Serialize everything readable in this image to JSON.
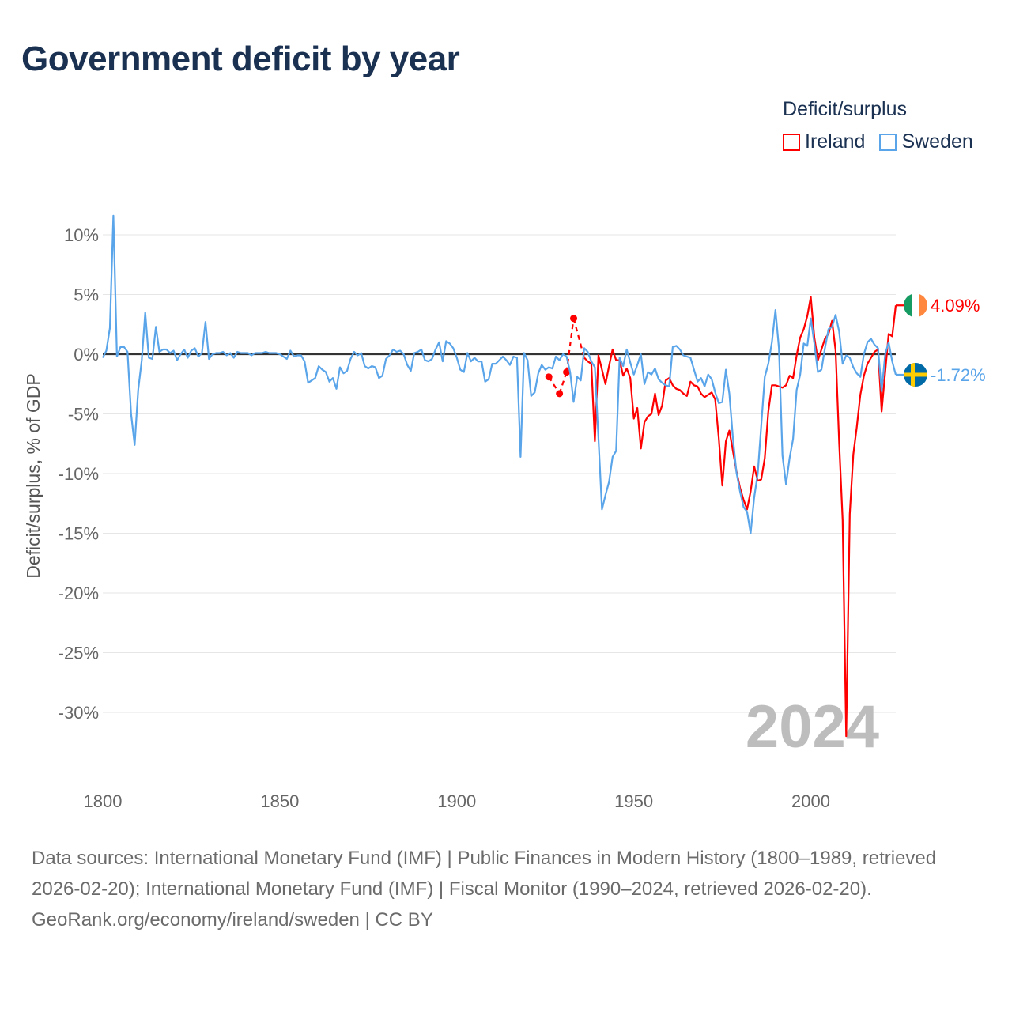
{
  "title": "Government deficit by year",
  "legend": {
    "title": "Deficit/surplus",
    "items": [
      {
        "label": "Ireland",
        "color": "#ff0000"
      },
      {
        "label": "Sweden",
        "color": "#5aa5ea"
      }
    ]
  },
  "footer": {
    "sources": "Data sources: International Monetary Fund (IMF) | Public Finances in Modern History (1800–1989, retrieved 2026-02-20); International Monetary Fund (IMF) | Fiscal Monitor (1990–2024, retrieved 2026-02-20).",
    "link": "GeoRank.org/economy/ireland/sweden | CC BY"
  },
  "chart_data": {
    "type": "line",
    "title": "Government deficit by year",
    "xlabel": "",
    "ylabel": "Deficit/surplus, % of GDP",
    "xlim": [
      1800,
      2024
    ],
    "ylim": [
      -32,
      12
    ],
    "x_ticks": [
      1800,
      1850,
      1900,
      1950,
      2000
    ],
    "y_ticks": [
      10,
      5,
      0,
      -5,
      -10,
      -15,
      -20,
      -25,
      -30
    ],
    "y_tick_labels": [
      "10%",
      "5%",
      "0%",
      "-5%",
      "-10%",
      "-15%",
      "-20%",
      "-25%",
      "-30%"
    ],
    "grid": true,
    "year_watermark": "2024",
    "series": [
      {
        "name": "Ireland",
        "color": "#ff0000",
        "end_label": "4.09%",
        "flag": "ireland-flag",
        "points": [
          [
            1926,
            -1.9
          ],
          [
            1929,
            -3.3
          ],
          [
            1931,
            -1.5
          ],
          [
            1933,
            3.0
          ],
          [
            1936,
            -0.3
          ],
          [
            1937,
            -0.6
          ],
          [
            1938,
            -0.8
          ],
          [
            1939,
            -7.3
          ],
          [
            1940,
            -0.1
          ],
          [
            1941,
            -1.3
          ],
          [
            1942,
            -2.5
          ],
          [
            1943,
            -1.0
          ],
          [
            1944,
            0.4
          ],
          [
            1945,
            -0.5
          ],
          [
            1946,
            -0.5
          ],
          [
            1947,
            -1.8
          ],
          [
            1948,
            -1.2
          ],
          [
            1949,
            -2.0
          ],
          [
            1950,
            -5.4
          ],
          [
            1951,
            -4.5
          ],
          [
            1952,
            -7.9
          ],
          [
            1953,
            -5.7
          ],
          [
            1954,
            -5.2
          ],
          [
            1955,
            -5.0
          ],
          [
            1956,
            -3.3
          ],
          [
            1957,
            -5.1
          ],
          [
            1958,
            -4.3
          ],
          [
            1959,
            -2.2
          ],
          [
            1960,
            -2.0
          ],
          [
            1961,
            -2.6
          ],
          [
            1962,
            -2.9
          ],
          [
            1963,
            -3.0
          ],
          [
            1964,
            -3.3
          ],
          [
            1965,
            -3.5
          ],
          [
            1966,
            -2.3
          ],
          [
            1967,
            -2.6
          ],
          [
            1968,
            -2.7
          ],
          [
            1969,
            -3.3
          ],
          [
            1970,
            -3.6
          ],
          [
            1971,
            -3.4
          ],
          [
            1972,
            -3.2
          ],
          [
            1973,
            -3.8
          ],
          [
            1974,
            -7.0
          ],
          [
            1975,
            -11.0
          ],
          [
            1976,
            -7.3
          ],
          [
            1977,
            -6.4
          ],
          [
            1978,
            -8.1
          ],
          [
            1979,
            -9.8
          ],
          [
            1980,
            -11.2
          ],
          [
            1981,
            -12.2
          ],
          [
            1982,
            -13.0
          ],
          [
            1983,
            -11.5
          ],
          [
            1984,
            -9.4
          ],
          [
            1985,
            -10.6
          ],
          [
            1986,
            -10.5
          ],
          [
            1987,
            -8.7
          ],
          [
            1988,
            -4.8
          ],
          [
            1989,
            -2.6
          ],
          [
            1990,
            -2.6
          ],
          [
            1991,
            -2.7
          ],
          [
            1992,
            -2.8
          ],
          [
            1993,
            -2.6
          ],
          [
            1994,
            -1.8
          ],
          [
            1995,
            -2.0
          ],
          [
            1996,
            -0.1
          ],
          [
            1997,
            1.4
          ],
          [
            1998,
            2.1
          ],
          [
            1999,
            3.2
          ],
          [
            2000,
            4.8
          ],
          [
            2001,
            1.4
          ],
          [
            2002,
            -0.5
          ],
          [
            2003,
            0.4
          ],
          [
            2004,
            1.3
          ],
          [
            2005,
            1.7
          ],
          [
            2006,
            2.8
          ],
          [
            2007,
            0.3
          ],
          [
            2008,
            -7.4
          ],
          [
            2009,
            -13.9
          ],
          [
            2010,
            -32.0
          ],
          [
            2011,
            -13.4
          ],
          [
            2012,
            -8.4
          ],
          [
            2013,
            -6.1
          ],
          [
            2014,
            -3.4
          ],
          [
            2015,
            -1.8
          ],
          [
            2016,
            -0.8
          ],
          [
            2017,
            -0.3
          ],
          [
            2018,
            0.2
          ],
          [
            2019,
            0.4
          ],
          [
            2020,
            -4.8
          ],
          [
            2021,
            -1.5
          ],
          [
            2022,
            1.7
          ],
          [
            2023,
            1.5
          ],
          [
            2024,
            4.09
          ]
        ]
      },
      {
        "name": "Sweden",
        "color": "#5aa5ea",
        "end_label": "-1.72%",
        "flag": "sweden-flag",
        "start_year": 1800,
        "values": [
          -0.3,
          0.3,
          2.2,
          11.6,
          -0.2,
          0.6,
          0.6,
          0.2,
          -5.0,
          -7.6,
          -3.0,
          -0.5,
          3.5,
          -0.3,
          -0.4,
          2.3,
          0.2,
          0.4,
          0.4,
          0.1,
          0.3,
          -0.5,
          0.0,
          0.4,
          -0.3,
          0.3,
          0.5,
          -0.2,
          0.1,
          2.7,
          -0.4,
          0.0,
          0.1,
          0.1,
          0.2,
          -0.1,
          0.1,
          -0.3,
          0.2,
          0.1,
          0.1,
          0.1,
          -0.1,
          0.1,
          0.1,
          0.1,
          0.2,
          0.1,
          0.1,
          0.1,
          0.0,
          -0.2,
          -0.4,
          0.3,
          -0.2,
          -0.1,
          -0.1,
          -0.6,
          -2.4,
          -2.2,
          -2.0,
          -1.0,
          -1.3,
          -1.5,
          -2.3,
          -2.0,
          -2.9,
          -1.1,
          -1.6,
          -1.4,
          -0.4,
          0.2,
          -0.1,
          0.1,
          -1.0,
          -1.2,
          -1.0,
          -1.1,
          -2.0,
          -1.8,
          -0.4,
          -0.1,
          0.4,
          0.2,
          0.3,
          0.0,
          -0.9,
          -1.4,
          0.1,
          0.2,
          0.4,
          -0.5,
          -0.6,
          -0.4,
          0.4,
          1.0,
          -0.6,
          1.1,
          0.9,
          0.5,
          -0.3,
          -1.3,
          -1.5,
          0.1,
          -0.6,
          -0.3,
          -0.6,
          -0.6,
          -2.3,
          -2.1,
          -0.8,
          -0.8,
          -0.5,
          -0.2,
          -0.5,
          -0.9,
          -0.2,
          -0.3,
          -8.6,
          0.1,
          -0.5,
          -3.5,
          -3.2,
          -1.6,
          -0.9,
          -1.3,
          -1.1,
          -1.2,
          -0.2,
          -0.5,
          0.0,
          -0.2,
          -1.5,
          -4.0,
          -1.9,
          -2.2,
          0.5,
          0.2,
          -0.6,
          -1.1,
          -7.0,
          -13.0,
          -11.8,
          -10.7,
          -8.6,
          -8.1,
          -0.3,
          -1.0,
          0.4,
          -0.7,
          -1.7,
          -0.9,
          0.0,
          -2.5,
          -1.5,
          -1.7,
          -1.2,
          -2.1,
          -2.4,
          -2.6,
          -2.7,
          0.6,
          0.7,
          0.4,
          -0.1,
          -0.2,
          -0.3,
          -1.3,
          -2.3,
          -2.0,
          -2.7,
          -1.7,
          -2.1,
          -3.2,
          -4.1,
          -4.0,
          -1.3,
          -3.3,
          -7.0,
          -9.9,
          -11.5,
          -12.8,
          -13.2,
          -15.0,
          -12.0,
          -10.0,
          -6.0,
          -1.9,
          -0.8,
          1.0,
          3.7,
          0.5,
          -8.5,
          -10.9,
          -8.7,
          -7.1,
          -3.0,
          -1.7,
          0.9,
          0.7,
          3.0,
          0.9,
          -1.5,
          -1.3,
          0.5,
          2.1,
          2.3,
          3.3,
          1.9,
          -0.8,
          -0.1,
          -0.3,
          -1.1,
          -1.6,
          -1.9,
          0.0,
          1.0,
          1.3,
          0.8,
          0.5,
          -3.1,
          0.0,
          1.0,
          -0.6,
          -1.72
        ]
      }
    ]
  }
}
